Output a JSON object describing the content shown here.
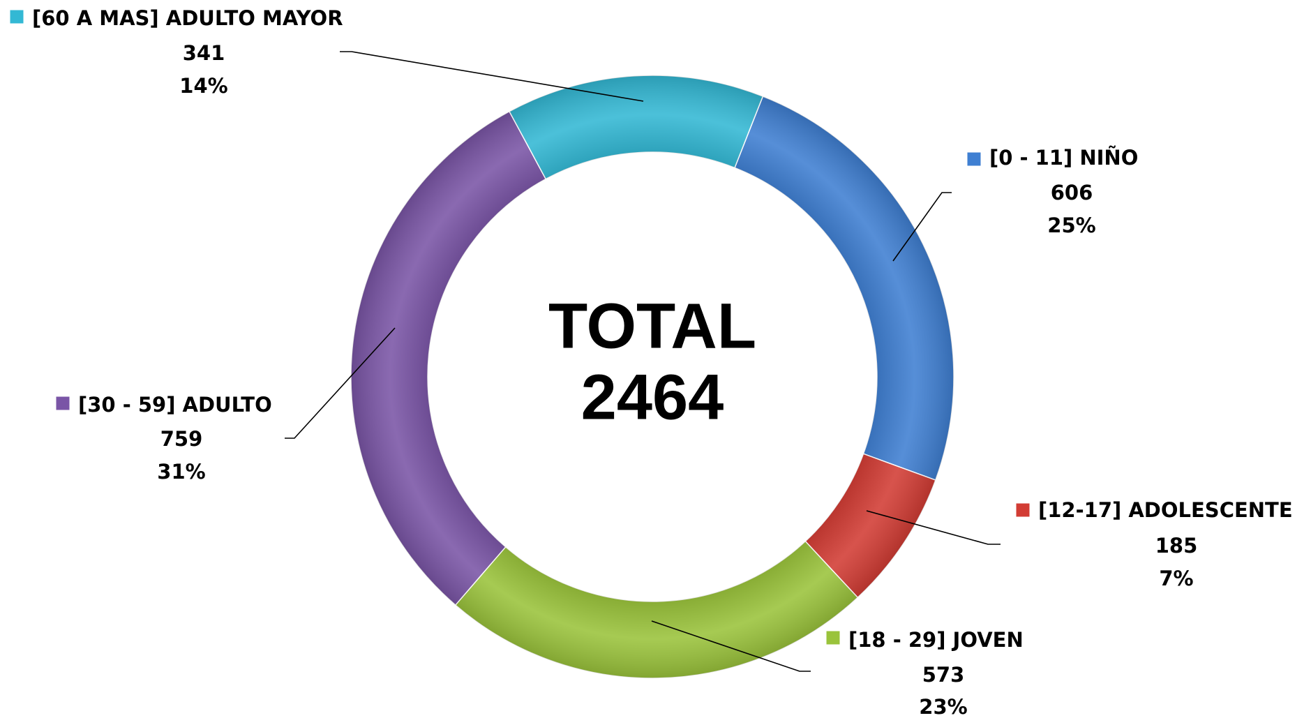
{
  "chart_data": {
    "type": "donut",
    "center_label": "TOTAL",
    "total": 2464,
    "categories": [
      "[0 - 11] NIÑO",
      "[12-17]  ADOLESCENTE",
      "[18 - 29] JOVEN",
      "[30 - 59] ADULTO",
      "[60 A MAS] ADULTO MAYOR"
    ],
    "values": [
      606,
      185,
      573,
      759,
      341
    ],
    "percents": [
      25,
      7,
      23,
      31,
      14
    ],
    "percent_labels": [
      "25%",
      "7%",
      "23%",
      "31%",
      "14%"
    ],
    "colors": [
      "#3f7fd2",
      "#d23c34",
      "#9ac33b",
      "#7a55a6",
      "#33b8d4"
    ]
  }
}
